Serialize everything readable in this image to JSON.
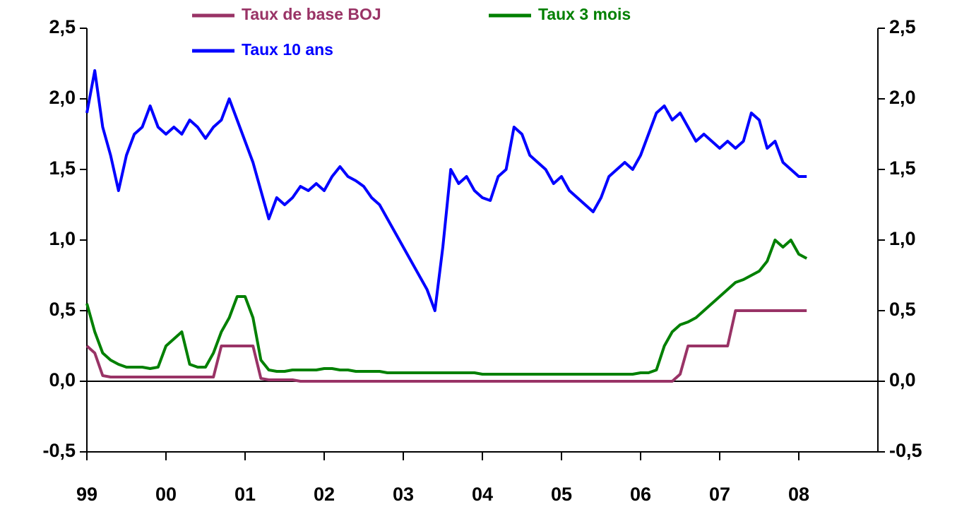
{
  "chart_data": {
    "type": "line",
    "x": [
      1999.0,
      1999.1,
      1999.2,
      1999.3,
      1999.4,
      1999.5,
      1999.6,
      1999.7,
      1999.8,
      1999.9,
      2000.0,
      2000.1,
      2000.2,
      2000.3,
      2000.4,
      2000.5,
      2000.6,
      2000.7,
      2000.8,
      2000.9,
      2001.0,
      2001.1,
      2001.2,
      2001.3,
      2001.4,
      2001.5,
      2001.6,
      2001.7,
      2001.8,
      2001.9,
      2002.0,
      2002.1,
      2002.2,
      2002.3,
      2002.4,
      2002.5,
      2002.6,
      2002.7,
      2002.8,
      2002.9,
      2003.0,
      2003.1,
      2003.2,
      2003.3,
      2003.4,
      2003.5,
      2003.6,
      2003.7,
      2003.8,
      2003.9,
      2004.0,
      2004.1,
      2004.2,
      2004.3,
      2004.4,
      2004.5,
      2004.6,
      2004.7,
      2004.8,
      2004.9,
      2005.0,
      2005.1,
      2005.2,
      2005.3,
      2005.4,
      2005.5,
      2005.6,
      2005.7,
      2005.8,
      2005.9,
      2006.0,
      2006.1,
      2006.2,
      2006.3,
      2006.4,
      2006.5,
      2006.6,
      2006.7,
      2006.8,
      2006.9,
      2007.0,
      2007.1,
      2007.2,
      2007.3,
      2007.4,
      2007.5,
      2007.6,
      2007.7,
      2007.8,
      2007.9,
      2008.0,
      2008.1
    ],
    "series": [
      {
        "name": "Taux de base BOJ",
        "color": "#993366",
        "values": [
          0.25,
          0.2,
          0.04,
          0.03,
          0.03,
          0.03,
          0.03,
          0.03,
          0.03,
          0.03,
          0.03,
          0.03,
          0.03,
          0.03,
          0.03,
          0.03,
          0.03,
          0.25,
          0.25,
          0.25,
          0.25,
          0.25,
          0.02,
          0.01,
          0.01,
          0.01,
          0.01,
          0.0,
          0.0,
          0.0,
          0.0,
          0.0,
          0.0,
          0.0,
          0.0,
          0.0,
          0.0,
          0.0,
          0.0,
          0.0,
          0.0,
          0.0,
          0.0,
          0.0,
          0.0,
          0.0,
          0.0,
          0.0,
          0.0,
          0.0,
          0.0,
          0.0,
          0.0,
          0.0,
          0.0,
          0.0,
          0.0,
          0.0,
          0.0,
          0.0,
          0.0,
          0.0,
          0.0,
          0.0,
          0.0,
          0.0,
          0.0,
          0.0,
          0.0,
          0.0,
          0.0,
          0.0,
          0.0,
          0.0,
          0.0,
          0.05,
          0.25,
          0.25,
          0.25,
          0.25,
          0.25,
          0.25,
          0.5,
          0.5,
          0.5,
          0.5,
          0.5,
          0.5,
          0.5,
          0.5,
          0.5,
          0.5
        ]
      },
      {
        "name": "Taux 3 mois",
        "color": "#008000",
        "values": [
          0.55,
          0.35,
          0.2,
          0.15,
          0.12,
          0.1,
          0.1,
          0.1,
          0.09,
          0.1,
          0.25,
          0.3,
          0.35,
          0.12,
          0.1,
          0.1,
          0.2,
          0.35,
          0.45,
          0.6,
          0.6,
          0.45,
          0.15,
          0.08,
          0.07,
          0.07,
          0.08,
          0.08,
          0.08,
          0.08,
          0.09,
          0.09,
          0.08,
          0.08,
          0.07,
          0.07,
          0.07,
          0.07,
          0.06,
          0.06,
          0.06,
          0.06,
          0.06,
          0.06,
          0.06,
          0.06,
          0.06,
          0.06,
          0.06,
          0.06,
          0.05,
          0.05,
          0.05,
          0.05,
          0.05,
          0.05,
          0.05,
          0.05,
          0.05,
          0.05,
          0.05,
          0.05,
          0.05,
          0.05,
          0.05,
          0.05,
          0.05,
          0.05,
          0.05,
          0.05,
          0.06,
          0.06,
          0.08,
          0.25,
          0.35,
          0.4,
          0.42,
          0.45,
          0.5,
          0.55,
          0.6,
          0.65,
          0.7,
          0.72,
          0.75,
          0.78,
          0.85,
          1.0,
          0.95,
          1.0,
          0.9,
          0.87
        ]
      },
      {
        "name": "Taux 10 ans",
        "color": "#0000ff",
        "values": [
          1.9,
          2.2,
          1.8,
          1.6,
          1.35,
          1.6,
          1.75,
          1.8,
          1.95,
          1.8,
          1.75,
          1.8,
          1.75,
          1.85,
          1.8,
          1.72,
          1.8,
          1.85,
          2.0,
          1.85,
          1.7,
          1.55,
          1.35,
          1.15,
          1.3,
          1.25,
          1.3,
          1.38,
          1.35,
          1.4,
          1.35,
          1.45,
          1.52,
          1.45,
          1.42,
          1.38,
          1.3,
          1.25,
          1.15,
          1.05,
          0.95,
          0.85,
          0.75,
          0.65,
          0.5,
          0.95,
          1.5,
          1.4,
          1.45,
          1.35,
          1.3,
          1.28,
          1.45,
          1.5,
          1.8,
          1.75,
          1.6,
          1.55,
          1.5,
          1.4,
          1.45,
          1.35,
          1.3,
          1.25,
          1.2,
          1.3,
          1.45,
          1.5,
          1.55,
          1.5,
          1.6,
          1.75,
          1.9,
          1.95,
          1.85,
          1.9,
          1.8,
          1.7,
          1.75,
          1.7,
          1.65,
          1.7,
          1.65,
          1.7,
          1.9,
          1.85,
          1.65,
          1.7,
          1.55,
          1.5,
          1.45,
          1.45
        ]
      }
    ],
    "xlim": [
      1999,
      2009
    ],
    "xticks": [
      {
        "value": 1999,
        "label": "99"
      },
      {
        "value": 2000,
        "label": "00"
      },
      {
        "value": 2001,
        "label": "01"
      },
      {
        "value": 2002,
        "label": "02"
      },
      {
        "value": 2003,
        "label": "03"
      },
      {
        "value": 2004,
        "label": "04"
      },
      {
        "value": 2005,
        "label": "05"
      },
      {
        "value": 2006,
        "label": "06"
      },
      {
        "value": 2007,
        "label": "07"
      },
      {
        "value": 2008,
        "label": "08"
      }
    ],
    "ylim": [
      -0.5,
      2.5
    ],
    "yticks": [
      {
        "value": -0.5,
        "label": "-0,5"
      },
      {
        "value": 0,
        "label": "0,0"
      },
      {
        "value": 0.5,
        "label": "0,5"
      },
      {
        "value": 1,
        "label": "1,0"
      },
      {
        "value": 1.5,
        "label": "1,5"
      },
      {
        "value": 2,
        "label": "2,0"
      },
      {
        "value": 2.5,
        "label": "2,5"
      }
    ],
    "y2lim": [
      -0.5,
      2.5
    ],
    "y2ticks": [
      {
        "value": -0.5,
        "label": "-0,5"
      },
      {
        "value": 0,
        "label": "0,0"
      },
      {
        "value": 0.5,
        "label": "0,5"
      },
      {
        "value": 1,
        "label": "1,0"
      },
      {
        "value": 1.5,
        "label": "1,5"
      },
      {
        "value": 2,
        "label": "2,0"
      },
      {
        "value": 2.5,
        "label": "2,5"
      }
    ]
  }
}
